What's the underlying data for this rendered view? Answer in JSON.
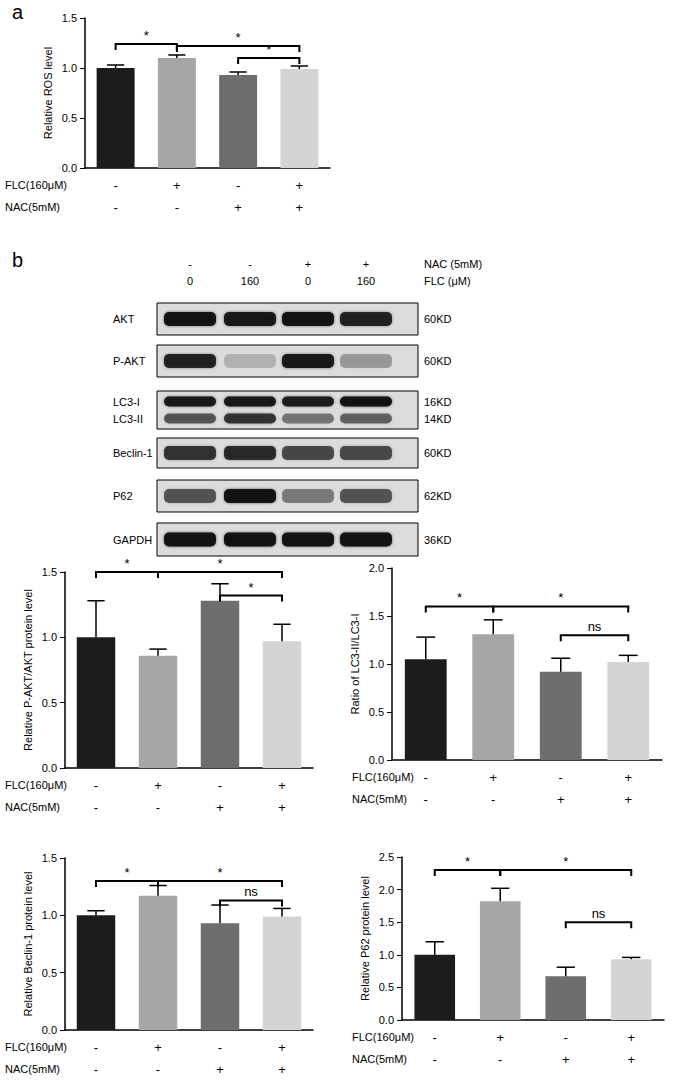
{
  "panel_labels": [
    "a",
    "b"
  ],
  "chart_data": [
    {
      "type": "bar",
      "ylabel": "Relative ROS level",
      "categories": [
        "-\n-",
        "+\n-",
        "-\n+",
        "+\n+"
      ],
      "row_labels": [
        "FLC(160μM)",
        "NAC(5mM)"
      ],
      "values": [
        1.0,
        1.1,
        0.93,
        0.99
      ],
      "errors": [
        0.03,
        0.03,
        0.03,
        0.03
      ],
      "colors": [
        "#1c1c1c",
        "#a6a6a6",
        "#6e6e6e",
        "#d4d4d4"
      ],
      "ylim": [
        0,
        1.5
      ],
      "yticks": [
        {
          "value": 0,
          "label": "0.0"
        },
        0.5,
        {
          "value": 1,
          "label": "1.0"
        },
        1.5
      ],
      "annotations": [
        {
          "from": 0,
          "to": 1,
          "y": 1.24,
          "label": "*"
        },
        {
          "from": 1,
          "to": 3,
          "y": 1.22,
          "label": "*"
        },
        {
          "from": 2,
          "to": 3,
          "y": 1.1,
          "label": "*"
        }
      ]
    },
    {
      "type": "bar",
      "ylabel": "Relative P-AKT/AKT protein level",
      "categories": [
        "-\n-",
        "+\n-",
        "-\n+",
        "+\n+"
      ],
      "row_labels": [
        "FLC(160μM)",
        "NAC(5mM)"
      ],
      "values": [
        1.0,
        0.86,
        1.28,
        0.97
      ],
      "errors": [
        0.28,
        0.05,
        0.13,
        0.13
      ],
      "colors": [
        "#1c1c1c",
        "#a6a6a6",
        "#6e6e6e",
        "#d4d4d4"
      ],
      "ylim": [
        0,
        1.5
      ],
      "yticks": [
        {
          "value": 0,
          "label": "0.0"
        },
        0.5,
        {
          "value": 1,
          "label": "1.0"
        },
        1.5
      ],
      "annotations": [
        {
          "from": 0,
          "to": 1,
          "y": 1.5,
          "label": "*"
        },
        {
          "from": 1,
          "to": 3,
          "y": 1.5,
          "label": "*"
        },
        {
          "from": 2,
          "to": 3,
          "y": 1.32,
          "label": "*"
        }
      ]
    },
    {
      "type": "bar",
      "ylabel": "Ratio of LC3-II/LC3-I",
      "categories": [
        "-\n-",
        "+\n-",
        "-\n+",
        "+\n+"
      ],
      "row_labels": [
        "FLC(160μM)",
        "NAC(5mM)"
      ],
      "values": [
        1.05,
        1.31,
        0.92,
        1.02
      ],
      "errors": [
        0.23,
        0.15,
        0.14,
        0.07
      ],
      "colors": [
        "#1c1c1c",
        "#a6a6a6",
        "#6e6e6e",
        "#d4d4d4"
      ],
      "ylim": [
        0,
        2
      ],
      "yticks": [
        {
          "value": 0,
          "label": "0.0"
        },
        0.5,
        {
          "value": 1,
          "label": "1.0"
        },
        1.5,
        {
          "value": 2,
          "label": "2.0"
        }
      ],
      "annotations": [
        {
          "from": 0,
          "to": 1,
          "y": 1.6,
          "label": "*"
        },
        {
          "from": 1,
          "to": 3,
          "y": 1.6,
          "label": "*"
        },
        {
          "from": 2,
          "to": 3,
          "y": 1.3,
          "label": "ns"
        }
      ]
    },
    {
      "type": "bar",
      "ylabel": "Relative Beclin-1 protein level",
      "categories": [
        "-\n-",
        "+\n-",
        "-\n+",
        "+\n+"
      ],
      "row_labels": [
        "FLC(160μM)",
        "NAC(5mM)"
      ],
      "values": [
        1.0,
        1.17,
        0.93,
        0.99
      ],
      "errors": [
        0.04,
        0.09,
        0.16,
        0.07
      ],
      "colors": [
        "#1c1c1c",
        "#a6a6a6",
        "#6e6e6e",
        "#d4d4d4"
      ],
      "ylim": [
        0,
        1.5
      ],
      "yticks": [
        {
          "value": 0,
          "label": "0.0"
        },
        0.5,
        {
          "value": 1,
          "label": "1.0"
        },
        1.5
      ],
      "annotations": [
        {
          "from": 0,
          "to": 1,
          "y": 1.3,
          "label": "*"
        },
        {
          "from": 1,
          "to": 3,
          "y": 1.3,
          "label": "*"
        },
        {
          "from": 2,
          "to": 3,
          "y": 1.13,
          "label": "ns"
        }
      ]
    },
    {
      "type": "bar",
      "ylabel": "Relative P62 protein level",
      "categories": [
        "-\n-",
        "+\n-",
        "-\n+",
        "+\n+"
      ],
      "row_labels": [
        "FLC(160μM)",
        "NAC(5mM)"
      ],
      "values": [
        1.0,
        1.82,
        0.67,
        0.93
      ],
      "errors": [
        0.2,
        0.2,
        0.14,
        0.03
      ],
      "colors": [
        "#1c1c1c",
        "#a6a6a6",
        "#6e6e6e",
        "#d4d4d4"
      ],
      "ylim": [
        0,
        2.5
      ],
      "yticks": [
        {
          "value": 0,
          "label": "0.0"
        },
        0.5,
        {
          "value": 1,
          "label": "1.0"
        },
        1.5,
        {
          "value": 2,
          "label": "2.0"
        },
        2.5
      ],
      "annotations": [
        {
          "from": 0,
          "to": 1,
          "y": 2.3,
          "label": "*"
        },
        {
          "from": 1,
          "to": 3,
          "y": 2.3,
          "label": "*"
        },
        {
          "from": 2,
          "to": 3,
          "y": 1.5,
          "label": "ns"
        }
      ]
    }
  ],
  "blot": {
    "header": [
      {
        "label": "NAC (5mM)",
        "signs": [
          "-",
          "-",
          "+",
          "+"
        ]
      },
      {
        "label": "FLC (μM)",
        "signs": [
          "0",
          "160",
          "0",
          "160"
        ]
      }
    ],
    "rows": [
      {
        "labels": [
          "AKT"
        ],
        "sizes": [
          "60KD"
        ]
      },
      {
        "labels": [
          "P-AKT"
        ],
        "sizes": [
          "60KD"
        ]
      },
      {
        "labels": [
          "LC3-I",
          "LC3-II"
        ],
        "sizes": [
          "16KD",
          "14KD"
        ]
      },
      {
        "labels": [
          "Beclin-1"
        ],
        "sizes": [
          "60KD"
        ]
      },
      {
        "labels": [
          "P62"
        ],
        "sizes": [
          "62KD"
        ]
      },
      {
        "labels": [
          "GAPDH"
        ],
        "sizes": [
          "36KD"
        ]
      }
    ]
  }
}
